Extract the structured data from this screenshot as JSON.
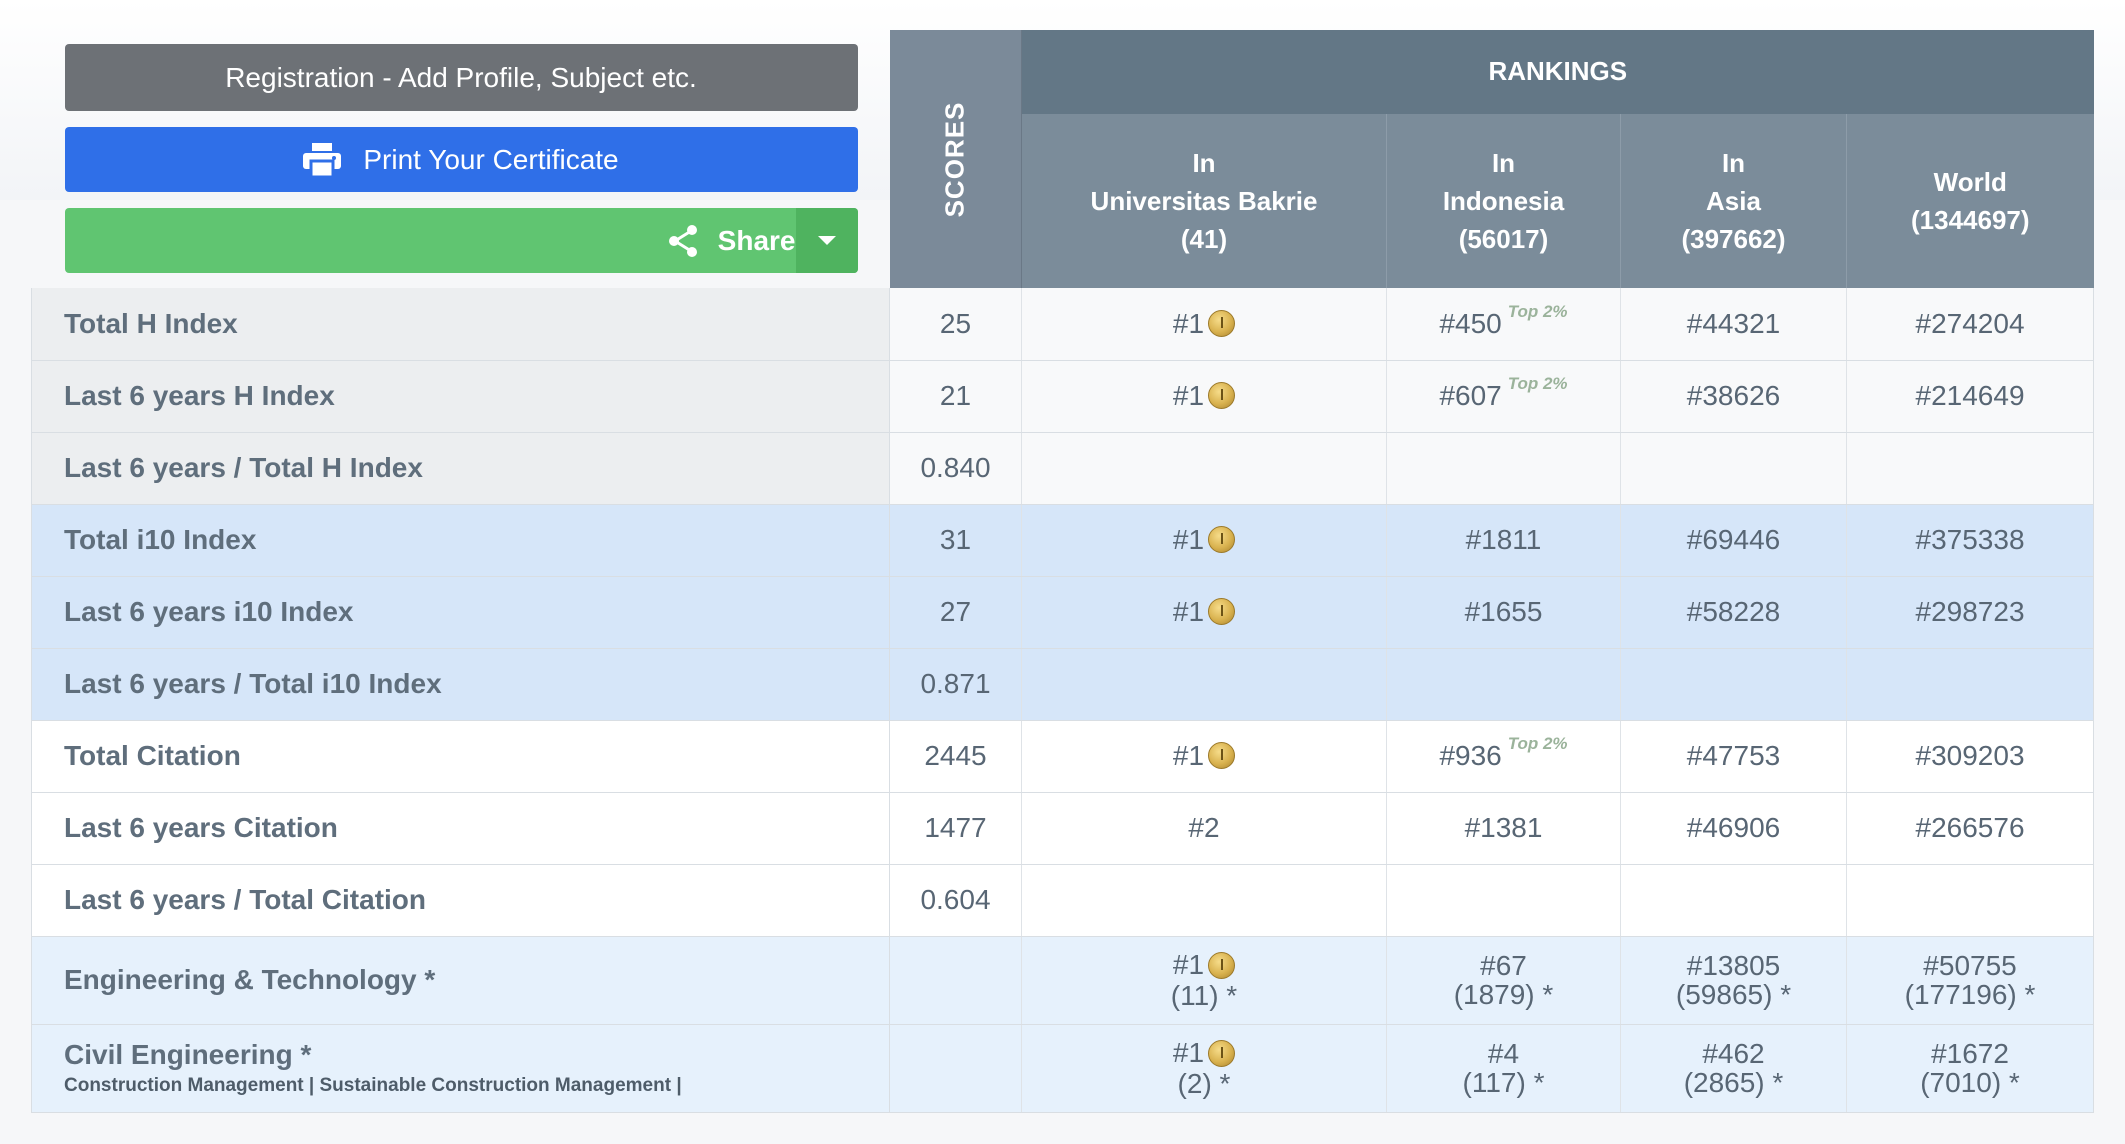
{
  "buttons": {
    "registration": "Registration - Add Profile, Subject etc.",
    "print": "Print Your Certificate",
    "share": "Share"
  },
  "header": {
    "scores": "SCORES",
    "rankings": "RANKINGS",
    "columns": [
      {
        "line1": "In",
        "line2": "Universitas Bakrie",
        "line3": "(41)"
      },
      {
        "line1": "In",
        "line2": "Indonesia",
        "line3": "(56017)"
      },
      {
        "line1": "In",
        "line2": "Asia",
        "line3": "(397662)"
      },
      {
        "line1": "World",
        "line2": "(1344697)",
        "line3": ""
      }
    ]
  },
  "top_badge": "Top 2%",
  "rows": [
    {
      "label": "Total H Index",
      "score": "25",
      "r1": "#1",
      "r2": "#450",
      "r3": "#44321",
      "r4": "#274204"
    },
    {
      "label": "Last 6 years H Index",
      "score": "21",
      "r1": "#1",
      "r2": "#607",
      "r3": "#38626",
      "r4": "#214649"
    },
    {
      "label": "Last 6 years / Total H Index",
      "score": "0.840"
    },
    {
      "label": "Total i10 Index",
      "score": "31",
      "r1": "#1",
      "r2": "#1811",
      "r3": "#69446",
      "r4": "#375338"
    },
    {
      "label": "Last 6 years i10 Index",
      "score": "27",
      "r1": "#1",
      "r2": "#1655",
      "r3": "#58228",
      "r4": "#298723"
    },
    {
      "label": "Last 6 years / Total i10 Index",
      "score": "0.871"
    },
    {
      "label": "Total Citation",
      "score": "2445",
      "r1": "#1",
      "r2": "#936",
      "r3": "#47753",
      "r4": "#309203"
    },
    {
      "label": "Last 6 years Citation",
      "score": "1477",
      "r1": "#2",
      "r2": "#1381",
      "r3": "#46906",
      "r4": "#266576"
    },
    {
      "label": "Last 6 years / Total Citation",
      "score": "0.604"
    }
  ],
  "subjects": [
    {
      "label": "Engineering & Technology *",
      "r1a": "#1",
      "r1b": "(11) *",
      "r2a": "#67",
      "r2b": "(1879) *",
      "r3a": "#13805",
      "r3b": "(59865) *",
      "r4a": "#50755",
      "r4b": "(177196) *"
    },
    {
      "label": "Civil Engineering *",
      "sub": "Construction Management | Sustainable Construction Management |",
      "r1a": "#1",
      "r1b": "(2) *",
      "r2a": "#4",
      "r2b": "(117) *",
      "r3a": "#462",
      "r3b": "(2865) *",
      "r4a": "#1672",
      "r4b": "(7010) *"
    }
  ],
  "icons": {
    "print": "printer-icon",
    "share": "share-icon",
    "medal": "gold-medal-icon",
    "caret": "chevron-down-icon"
  }
}
